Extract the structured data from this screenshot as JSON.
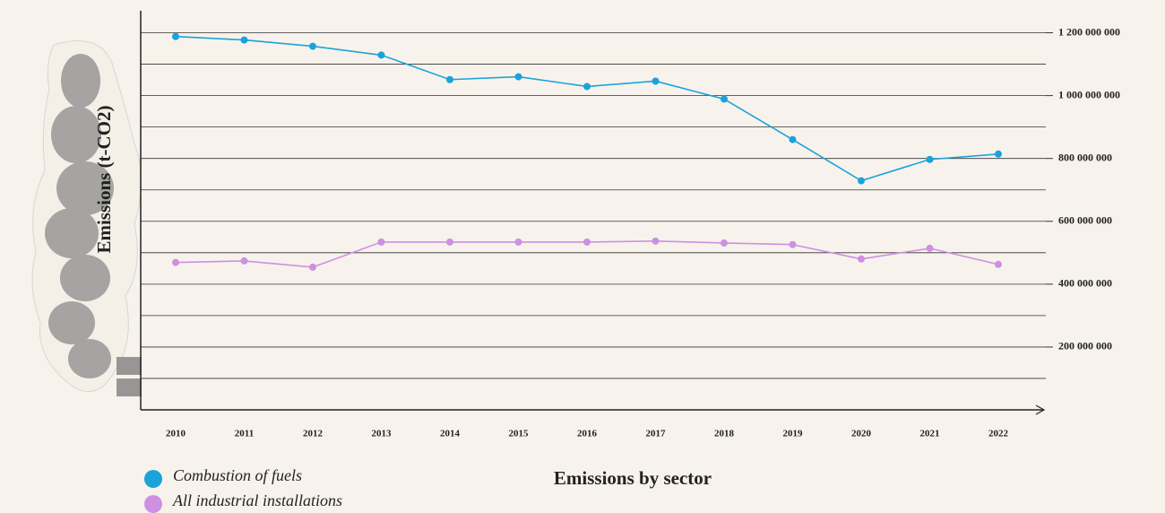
{
  "chart_data": {
    "type": "line",
    "title": "Emissions by sector",
    "y_label": "Emissions (t-CO2)",
    "categories": [
      "2010",
      "2011",
      "2012",
      "2013",
      "2014",
      "2015",
      "2016",
      "2017",
      "2018",
      "2019",
      "2020",
      "2021",
      "2022"
    ],
    "series": [
      {
        "name": "Combustion of fuels",
        "color": "#1aa3d9",
        "values": [
          1188000000,
          1177000000,
          1157000000,
          1129000000,
          1051000000,
          1060000000,
          1029000000,
          1046000000,
          989000000,
          860000000,
          729000000,
          797000000,
          814000000
        ]
      },
      {
        "name": "All industrial installations",
        "color": "#cf8fe3",
        "values": [
          469000000,
          474000000,
          454000000,
          534000000,
          534000000,
          534000000,
          534000000,
          537000000,
          531000000,
          526000000,
          480000000,
          514000000,
          463000000
        ]
      }
    ],
    "ylim": [
      0,
      1270000000
    ],
    "yticks": [
      {
        "value": 200000000,
        "label": "200 000 000"
      },
      {
        "value": 400000000,
        "label": "400 000 000"
      },
      {
        "value": 600000000,
        "label": "600 000 000"
      },
      {
        "value": 800000000,
        "label": "800 000 000"
      },
      {
        "value": 1000000000,
        "label": "1 000 000 000"
      },
      {
        "value": 1200000000,
        "label": "1 200 000 000"
      }
    ],
    "minor_grid": [
      100000000,
      300000000,
      500000000,
      700000000,
      900000000,
      1100000000
    ],
    "grid": true
  }
}
